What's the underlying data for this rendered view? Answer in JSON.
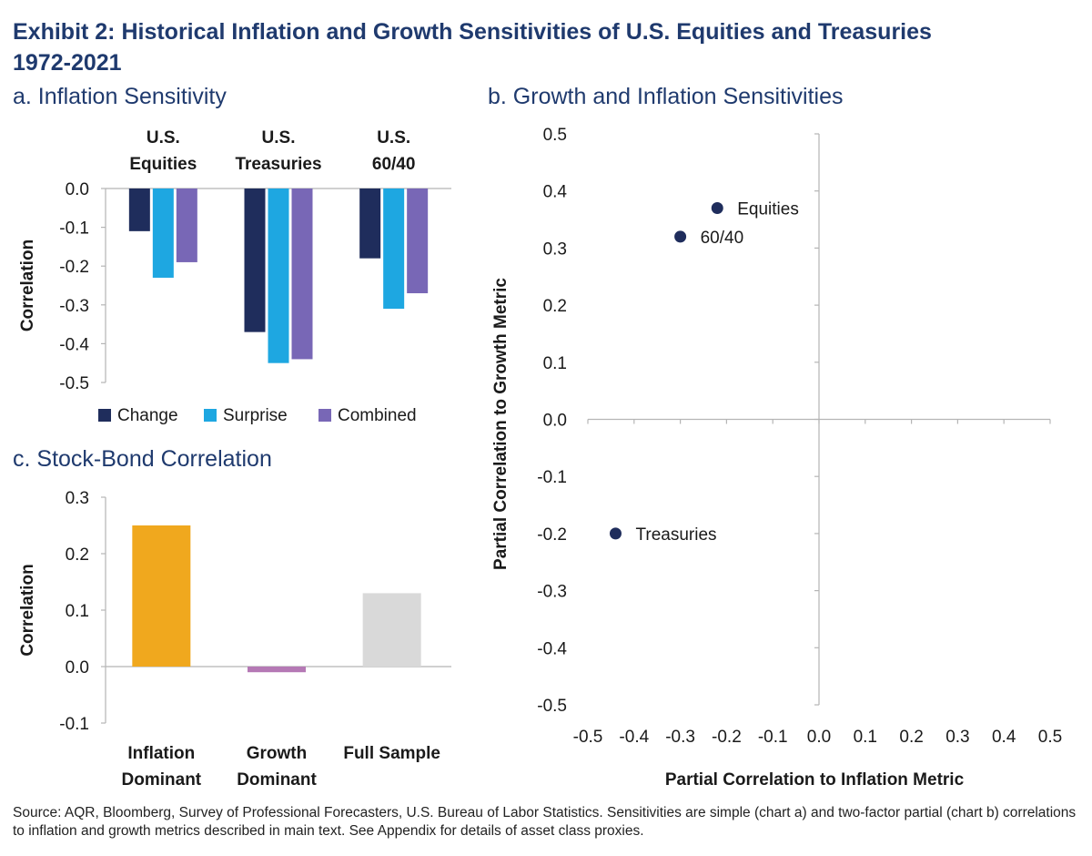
{
  "title_line1": "Exhibit 2: Historical Inflation and Growth Sensitivities of U.S. Equities and Treasuries",
  "title_line2": "1972-2021",
  "source": "Source: AQR, Bloomberg, Survey of Professional Forecasters, U.S. Bureau of Labor Statistics. Sensitivities are simple (chart a) and two-factor partial (chart b) correlations to inflation and growth metrics described in main text. See Appendix for details of asset class proxies.",
  "chart_data": [
    {
      "id": "a",
      "type": "bar",
      "title": "a. Inflation Sensitivity",
      "ylabel": "Correlation",
      "xlabel": "",
      "ylim": [
        -0.5,
        0.0
      ],
      "yticks": [
        "0.0",
        "-0.1",
        "-0.2",
        "-0.3",
        "-0.4",
        "-0.5"
      ],
      "categories": [
        [
          "U.S.",
          "Equities"
        ],
        [
          "U.S.",
          "Treasuries"
        ],
        [
          "U.S.",
          "60/40"
        ]
      ],
      "series": [
        {
          "name": "Change",
          "color": "#1f2d5c",
          "values": [
            -0.11,
            -0.37,
            -0.18
          ]
        },
        {
          "name": "Surprise",
          "color": "#1ea7e1",
          "values": [
            -0.23,
            -0.45,
            -0.31
          ]
        },
        {
          "name": "Combined",
          "color": "#7867b6",
          "values": [
            -0.19,
            -0.44,
            -0.27
          ]
        }
      ],
      "legend_position": "bottom",
      "grid": false
    },
    {
      "id": "b",
      "type": "scatter",
      "title": "b. Growth and Inflation Sensitivities",
      "xlabel": "Partial Correlation to Inflation Metric",
      "ylabel": "Partial Correlation to Growth Metric",
      "xlim": [
        -0.5,
        0.5
      ],
      "ylim": [
        -0.5,
        0.5
      ],
      "xticks": [
        "-0.5",
        "-0.4",
        "-0.3",
        "-0.2",
        "-0.1",
        "0.0",
        "0.1",
        "0.2",
        "0.3",
        "0.4",
        "0.5"
      ],
      "yticks": [
        "0.5",
        "0.4",
        "0.3",
        "0.2",
        "0.1",
        "0.0",
        "-0.1",
        "-0.2",
        "-0.3",
        "-0.4",
        "-0.5"
      ],
      "marker_color": "#1f2d5c",
      "points": [
        {
          "label": "Equities",
          "x": -0.22,
          "y": 0.37
        },
        {
          "label": "60/40",
          "x": -0.3,
          "y": 0.32
        },
        {
          "label": "Treasuries",
          "x": -0.44,
          "y": -0.2
        }
      ],
      "grid": false
    },
    {
      "id": "c",
      "type": "bar",
      "title": "c. Stock-Bond Correlation",
      "ylabel": "Correlation",
      "xlabel": "",
      "ylim": [
        -0.1,
        0.3
      ],
      "yticks": [
        "0.3",
        "0.2",
        "0.1",
        "0.0",
        "-0.1"
      ],
      "categories": [
        [
          "Inflation",
          "Dominant"
        ],
        [
          "Growth",
          "Dominant"
        ],
        [
          "Full Sample"
        ]
      ],
      "values": [
        0.25,
        -0.01,
        0.13
      ],
      "colors": [
        "#f0a81e",
        "#b579b5",
        "#d9d9d9"
      ],
      "grid": false
    }
  ]
}
